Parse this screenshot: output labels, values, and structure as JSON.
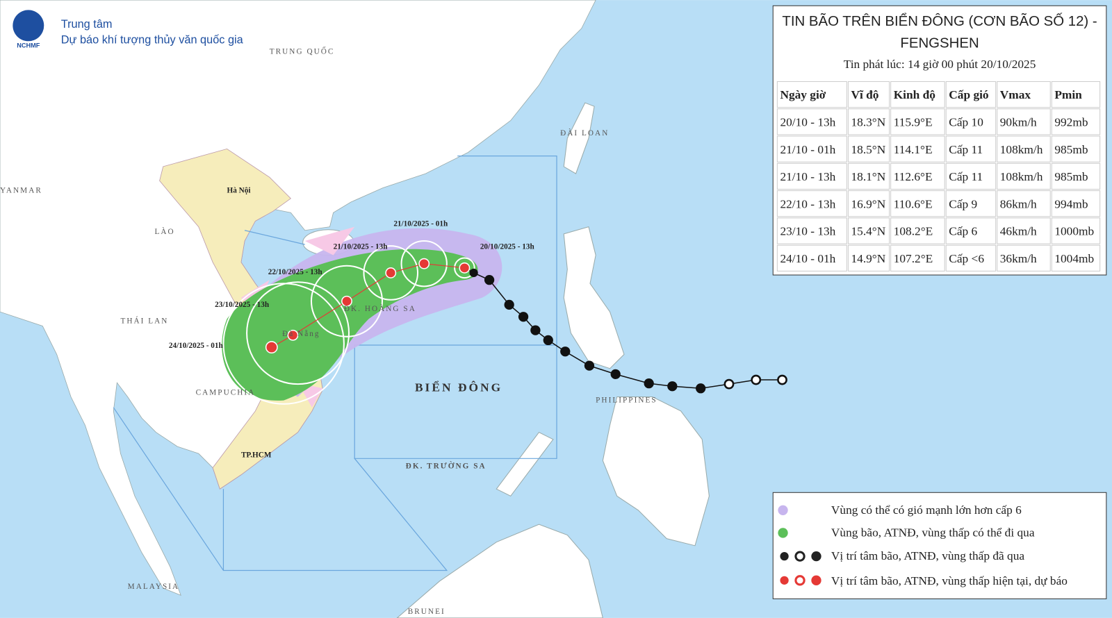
{
  "header": {
    "logo_text": "NCHMF",
    "org_line1": "Trung tâm",
    "org_line2": "Dự báo khí tượng thủy văn quốc gia"
  },
  "map_labels": {
    "china": "TRUNG QUỐC",
    "taiwan": "ĐÀI LOAN",
    "myanmar": "YANMAR",
    "hanoi": "Hà Nội",
    "laos": "LÀO",
    "thailand": "THÁI LAN",
    "cambodia": "CAMPUCHIA",
    "hcm": "TP.HCM",
    "danang": "Đà Nẵng",
    "hoang_sa": "ĐK. HOÀNG SA",
    "bien_dong": "BIỂN ĐÔNG",
    "truong_sa": "ĐK. TRƯỜNG SA",
    "malaysia": "MALAYSIA",
    "brunei": "BRUNEI",
    "philippines": "PHILIPPINES"
  },
  "track_labels": [
    "20/10/2025 - 13h",
    "21/10/2025 - 01h",
    "21/10/2025 - 13h",
    "22/10/2025 - 13h",
    "23/10/2025 - 13h",
    "24/10/2025 - 01h"
  ],
  "info_box": {
    "title_line1": "TIN BÃO TRÊN BIỂN ĐÔNG (CƠN BÃO SỐ 12) -",
    "title_line2": "FENGSHEN",
    "issued": "Tin phát lúc: 14 giờ 00 phút 20/10/2025",
    "table": {
      "header": [
        "Ngày giờ",
        "Vĩ độ",
        "Kinh độ",
        "Cấp gió",
        "Vmax",
        "Pmin"
      ],
      "rows": [
        [
          "20/10 - 13h",
          "18.3°N",
          "115.9°E",
          "Cấp 10",
          "90km/h",
          "992mb"
        ],
        [
          "21/10 - 01h",
          "18.5°N",
          "114.1°E",
          "Cấp 11",
          "108km/h",
          "985mb"
        ],
        [
          "21/10 - 13h",
          "18.1°N",
          "112.6°E",
          "Cấp 11",
          "108km/h",
          "985mb"
        ],
        [
          "22/10 - 13h",
          "16.9°N",
          "110.6°E",
          "Cấp 9",
          "86km/h",
          "994mb"
        ],
        [
          "23/10 - 13h",
          "15.4°N",
          "108.2°E",
          "Cấp 6",
          "46km/h",
          "1000mb"
        ],
        [
          "24/10 - 01h",
          "14.9°N",
          "107.2°E",
          "Cấp <6",
          "36km/h",
          "1004mb"
        ]
      ]
    }
  },
  "legend": [
    "Vùng có thể có gió mạnh lớn hơn cấp 6",
    "Vùng bão, ATNĐ, vùng thấp có thể đi qua",
    "Vị trí tâm bão, ATNĐ, vùng thấp đã qua",
    "Vị trí tâm bão, ATNĐ, vùng thấp hiện tại, dự báo"
  ]
}
